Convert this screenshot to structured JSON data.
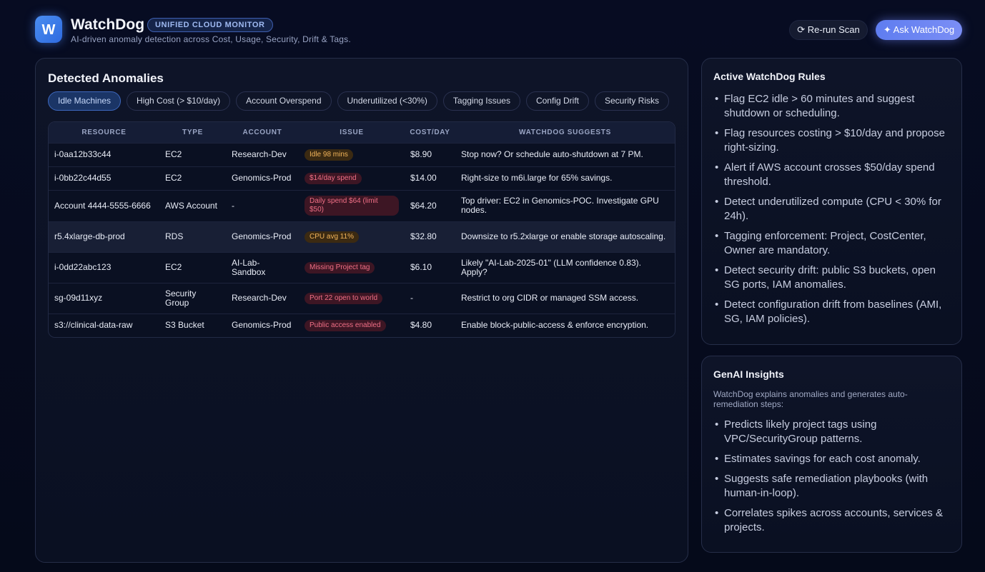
{
  "header": {
    "logo_letter": "W",
    "title": "WatchDog",
    "badge": "UNIFIED CLOUD MONITOR",
    "subtitle": "AI-driven anomaly detection across Cost, Usage, Security, Drift & Tags.",
    "rescan_label": "⟳ Re-run Scan",
    "ask_label": "✦ Ask WatchDog"
  },
  "anomalies": {
    "title": "Detected Anomalies",
    "tabs": [
      "Idle Machines",
      "High Cost (> $10/day)",
      "Account Overspend",
      "Underutilized (<30%)",
      "Tagging Issues",
      "Config Drift",
      "Security Risks"
    ],
    "active_tab": "Idle Machines",
    "columns": [
      "RESOURCE",
      "TYPE",
      "ACCOUNT",
      "ISSUE",
      "COST/DAY",
      "WATCHDOG SUGGESTS"
    ],
    "rows": [
      {
        "resource": "i-0aa12b33c44",
        "type": "EC2",
        "account": "Research-Dev",
        "issue": "Idle 98 mins",
        "issue_tone": "orange",
        "cost": "$8.90",
        "suggest": "Stop now? Or schedule auto-shutdown at 7 PM."
      },
      {
        "resource": "i-0bb22c44d55",
        "type": "EC2",
        "account": "Genomics-Prod",
        "issue": "$14/day spend",
        "issue_tone": "red",
        "cost": "$14.00",
        "suggest": "Right-size to m6i.large for 65% savings."
      },
      {
        "resource": "Account 4444-5555-6666",
        "type": "AWS Account",
        "account": "-",
        "issue": "Daily spend $64 (limit $50)",
        "issue_tone": "red",
        "cost": "$64.20",
        "suggest": "Top driver: EC2 in Genomics-POC. Investigate GPU nodes."
      },
      {
        "resource": "r5.4xlarge-db-prod",
        "type": "RDS",
        "account": "Genomics-Prod",
        "issue": "CPU avg 11%",
        "issue_tone": "orange",
        "cost": "$32.80",
        "suggest": "Downsize to r5.2xlarge or enable storage autoscaling."
      },
      {
        "resource": "i-0dd22abc123",
        "type": "EC2",
        "account": "AI-Lab-Sandbox",
        "issue": "Missing Project tag",
        "issue_tone": "red",
        "cost": "$6.10",
        "suggest": "Likely \"AI-Lab-2025-01\" (LLM confidence 0.83). Apply?"
      },
      {
        "resource": "sg-09d11xyz",
        "type": "Security Group",
        "account": "Research-Dev",
        "issue": "Port 22 open to world",
        "issue_tone": "red",
        "cost": "-",
        "suggest": "Restrict to org CIDR or managed SSM access."
      },
      {
        "resource": "s3://clinical-data-raw",
        "type": "S3 Bucket",
        "account": "Genomics-Prod",
        "issue": "Public access enabled",
        "issue_tone": "red",
        "cost": "$4.80",
        "suggest": "Enable block-public-access & enforce encryption."
      }
    ]
  },
  "rules": {
    "title": "Active WatchDog Rules",
    "items": [
      "Flag EC2 idle > 60 minutes and suggest shutdown or scheduling.",
      "Flag resources costing > $10/day and propose right-sizing.",
      "Alert if AWS account crosses $50/day spend threshold.",
      "Detect underutilized compute (CPU < 30% for 24h).",
      "Tagging enforcement: Project, CostCenter, Owner are mandatory.",
      "Detect security drift: public S3 buckets, open SG ports, IAM anomalies.",
      "Detect configuration drift from baselines (AMI, SG, IAM policies)."
    ]
  },
  "insights": {
    "title": "GenAI Insights",
    "description": "WatchDog explains anomalies and generates auto-remediation steps:",
    "items": [
      "Predicts likely project tags using VPC/SecurityGroup patterns.",
      "Estimates savings for each cost anomaly.",
      "Suggests safe remediation playbooks (with human-in-loop).",
      "Correlates spikes across accounts, services & projects."
    ]
  },
  "colors": {
    "background": "#060b1d",
    "accent": "#6a84f2",
    "warning": "#f2b45a",
    "danger": "#f06f86"
  }
}
